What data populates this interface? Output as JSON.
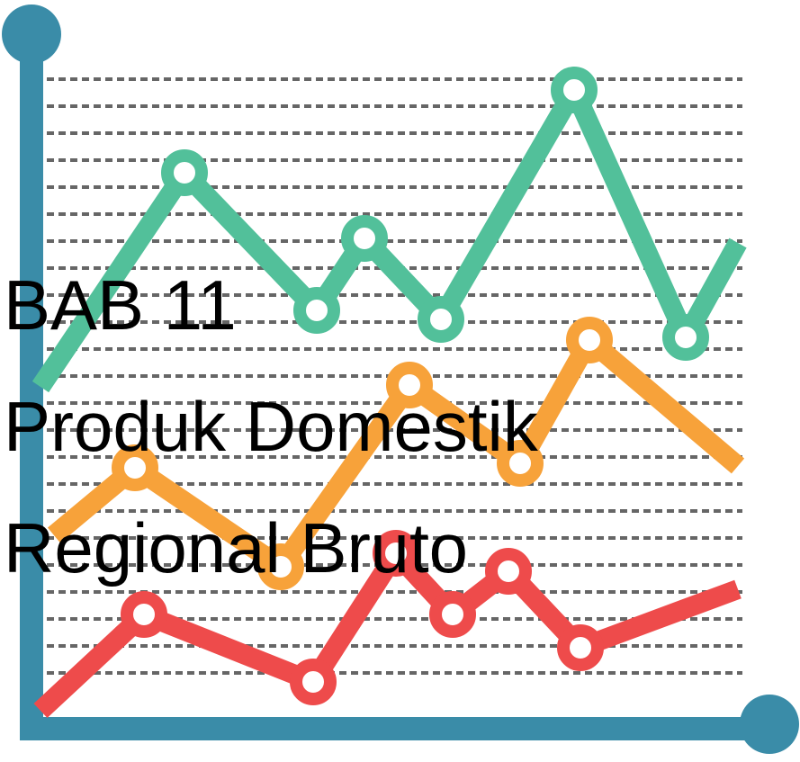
{
  "title": {
    "lines": [
      "BAB 11",
      "Produk Domestik",
      "Regional Bruto"
    ]
  }
}
